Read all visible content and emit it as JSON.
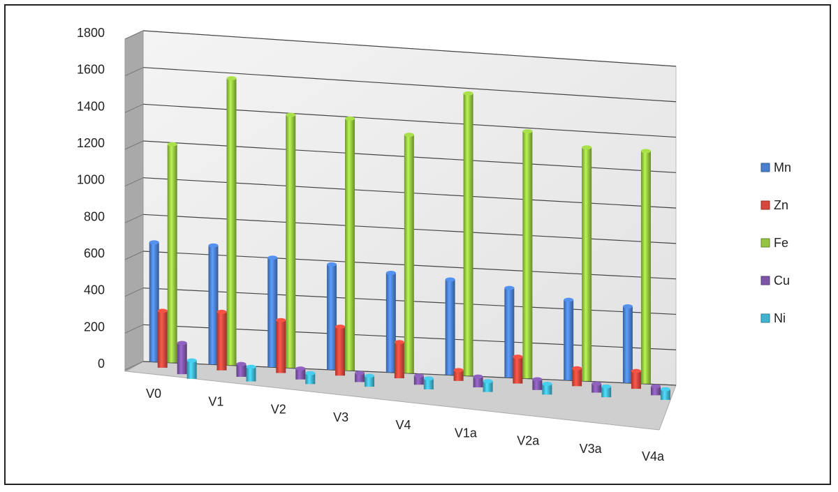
{
  "chart_data": {
    "type": "bar",
    "style": "3d-clustered-column",
    "categories": [
      "V0",
      "V1",
      "V2",
      "V3",
      "V4",
      "V1a",
      "V2a",
      "V3a",
      "V4a"
    ],
    "series": [
      {
        "name": "Mn",
        "color": "#4a7fd0",
        "values": [
          650,
          650,
          600,
          580,
          550,
          530,
          500,
          450,
          430
        ]
      },
      {
        "name": "Zn",
        "color": "#d8473c",
        "values": [
          310,
          320,
          290,
          270,
          200,
          60,
          150,
          100,
          100
        ]
      },
      {
        "name": "Fe",
        "color": "#94c441",
        "values": [
          1190,
          1570,
          1390,
          1390,
          1320,
          1570,
          1380,
          1310,
          1310
        ]
      },
      {
        "name": "Cu",
        "color": "#7d55a6",
        "values": [
          170,
          70,
          60,
          50,
          50,
          60,
          60,
          50,
          50
        ]
      },
      {
        "name": "Ni",
        "color": "#3fb3cf",
        "values": [
          100,
          80,
          60,
          60,
          60,
          60,
          60,
          60,
          60
        ]
      }
    ],
    "yticks": [
      "0",
      "200",
      "400",
      "600",
      "800",
      "1000",
      "1200",
      "1400",
      "1600",
      "1800"
    ],
    "ylim": [
      0,
      1800
    ],
    "grid": true,
    "legend": "right"
  }
}
